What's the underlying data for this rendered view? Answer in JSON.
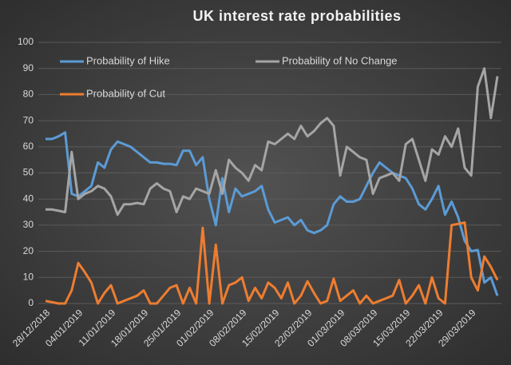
{
  "chart_data": {
    "type": "line",
    "title": "UK interest rate probabilities",
    "categories": [
      "28/12/2018",
      null,
      null,
      null,
      null,
      "04/01/2019",
      null,
      null,
      null,
      null,
      "11/01/2019",
      null,
      null,
      null,
      null,
      "18/01/2019",
      null,
      null,
      null,
      null,
      "25/01/2019",
      null,
      null,
      null,
      null,
      "01/02/2019",
      null,
      null,
      null,
      null,
      "08/02/2019",
      null,
      null,
      null,
      null,
      "15/02/2019",
      null,
      null,
      null,
      null,
      "22/02/2019",
      null,
      null,
      null,
      null,
      "01/03/2019",
      null,
      null,
      null,
      null,
      "08/03/2019",
      null,
      null,
      null,
      null,
      "15/03/2019",
      null,
      null,
      null,
      null,
      "22/03/2019",
      null,
      null,
      null,
      null,
      "29/03/2019",
      null,
      null,
      null,
      null
    ],
    "series": [
      {
        "name": "Probability of Hike",
        "color": "#5b9bd5",
        "values": [
          63,
          63,
          64,
          65.5,
          42,
          41,
          43,
          45,
          54,
          52,
          59,
          62,
          61,
          60,
          58,
          56,
          54,
          54,
          53.5,
          53.5,
          53,
          58.5,
          58.5,
          53,
          56,
          40,
          30,
          48,
          35,
          44,
          41,
          42,
          43,
          45,
          36,
          31,
          32,
          33,
          30,
          32,
          28,
          27,
          28,
          30,
          38,
          41,
          39,
          39,
          40,
          45,
          50,
          54,
          52,
          50,
          49,
          48,
          44,
          38,
          36,
          40,
          45,
          34,
          39,
          33,
          24,
          20,
          20.5,
          8,
          10,
          3
        ]
      },
      {
        "name": "Probability of No Change",
        "color": "#a5a5a5",
        "values": [
          36,
          36,
          35.5,
          35,
          58,
          40,
          42,
          43,
          45,
          44,
          41,
          34,
          38,
          38,
          38.5,
          38,
          44,
          46,
          44,
          43,
          35,
          41,
          40,
          44,
          43,
          42,
          51,
          42,
          55,
          52,
          50,
          47,
          53,
          51,
          62,
          61,
          63,
          65,
          63,
          68,
          64,
          66,
          69,
          71,
          68,
          49,
          60,
          58,
          56,
          55,
          42,
          48,
          49,
          50,
          47,
          61,
          63,
          55,
          47,
          59,
          57,
          64,
          60,
          67,
          52,
          49,
          83,
          90,
          71,
          87
        ]
      },
      {
        "name": "Probability of Cut",
        "color": "#ed7d31",
        "values": [
          1,
          0.5,
          0,
          0,
          5,
          15.5,
          12,
          8,
          0,
          4,
          7,
          0,
          1,
          2,
          3,
          5,
          0,
          0,
          3,
          6,
          7,
          0,
          6,
          0,
          29,
          0,
          22.5,
          0,
          7,
          8,
          10,
          1,
          6,
          2,
          8,
          6,
          2,
          8,
          0,
          3,
          8.5,
          4,
          0,
          1,
          9.5,
          1,
          3,
          5,
          0,
          3,
          0,
          1,
          2,
          3,
          9,
          0,
          3,
          7,
          0,
          10,
          2,
          0,
          30,
          30.5,
          31,
          10,
          5,
          18,
          14,
          9
        ]
      }
    ],
    "ylim": [
      0,
      100
    ],
    "yticks": [
      0,
      10,
      20,
      30,
      40,
      50,
      60,
      70,
      80,
      90,
      100
    ],
    "grid": true,
    "legend": "top"
  }
}
